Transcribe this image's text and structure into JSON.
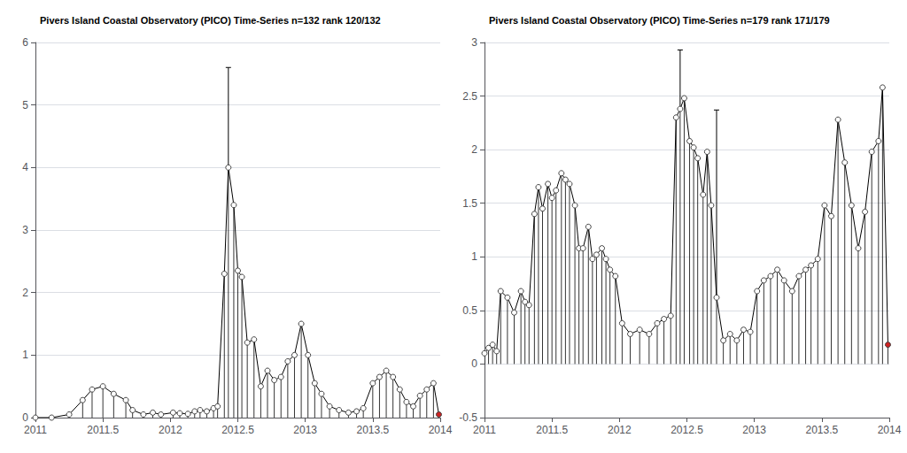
{
  "chart_data": [
    {
      "type": "line",
      "title": "Pivers Island Coastal Observatory (PICO) Time-Series n=132 rank 120/132",
      "x": [
        2011.0,
        2011.12,
        2011.25,
        2011.35,
        2011.42,
        2011.5,
        2011.58,
        2011.67,
        2011.72,
        2011.8,
        2011.87,
        2011.93,
        2012.02,
        2012.07,
        2012.13,
        2012.18,
        2012.22,
        2012.27,
        2012.32,
        2012.35,
        2012.4,
        2012.43,
        2012.47,
        2012.5,
        2012.53,
        2012.57,
        2012.62,
        2012.67,
        2012.72,
        2012.77,
        2012.82,
        2012.87,
        2012.92,
        2012.97,
        2013.02,
        2013.07,
        2013.12,
        2013.18,
        2013.25,
        2013.32,
        2013.38,
        2013.43,
        2013.5,
        2013.55,
        2013.6,
        2013.65,
        2013.7,
        2013.75,
        2013.8,
        2013.85,
        2013.9,
        2013.95,
        2013.99
      ],
      "values": [
        0.0,
        0.0,
        0.05,
        0.28,
        0.45,
        0.5,
        0.38,
        0.28,
        0.12,
        0.05,
        0.08,
        0.05,
        0.08,
        0.07,
        0.06,
        0.1,
        0.12,
        0.1,
        0.15,
        0.18,
        2.3,
        4.0,
        3.4,
        2.35,
        2.25,
        1.2,
        1.25,
        0.5,
        0.75,
        0.6,
        0.65,
        0.9,
        1.0,
        1.5,
        1.0,
        0.55,
        0.38,
        0.18,
        0.12,
        0.08,
        0.1,
        0.15,
        0.55,
        0.65,
        0.75,
        0.65,
        0.45,
        0.25,
        0.18,
        0.35,
        0.45,
        0.55,
        0.05
      ],
      "yerr": [
        0.0,
        0.0,
        0.0,
        0.0,
        0.0,
        0.0,
        0.0,
        0.0,
        0.0,
        0.0,
        0.0,
        0.0,
        0.0,
        0.0,
        0.0,
        0.0,
        0.0,
        0.0,
        0.0,
        0.0,
        0.0,
        1.6,
        0.0,
        0.0,
        0.0,
        0.0,
        0.0,
        0.0,
        0.0,
        0.0,
        0.0,
        0.0,
        0.0,
        0.0,
        0.0,
        0.0,
        0.0,
        0.0,
        0.0,
        0.0,
        0.0,
        0.0,
        0.0,
        0.0,
        0.0,
        0.0,
        0.0,
        0.0,
        0.0,
        0.0,
        0.0,
        0.0,
        0.0
      ],
      "color": "#000000",
      "colors": [
        "#ffffff",
        "#ffffff",
        "#ffffff",
        "#ffffff",
        "#ffffff",
        "#ffffff",
        "#ffffff",
        "#ffffff",
        "#ffffff",
        "#ffffff",
        "#ffffff",
        "#ffffff",
        "#ffffff",
        "#ffffff",
        "#ffffff",
        "#ffffff",
        "#ffffff",
        "#ffffff",
        "#ffffff",
        "#ffffff",
        "#ffffff",
        "#ffffff",
        "#ffffff",
        "#ffffff",
        "#ffffff",
        "#ffffff",
        "#ffffff",
        "#ffffff",
        "#ffffff",
        "#ffffff",
        "#ffffff",
        "#ffffff",
        "#ffffff",
        "#ffffff",
        "#ffffff",
        "#ffffff",
        "#ffffff",
        "#ffffff",
        "#ffffff",
        "#ffffff",
        "#ffffff",
        "#ffffff",
        "#ffffff",
        "#ffffff",
        "#ffffff",
        "#ffffff",
        "#ffffff",
        "#ffffff",
        "#ffffff",
        "#ffffff",
        "#ffffff",
        "#ffffff",
        "#cc2222"
      ],
      "marker": "circle",
      "line_style": "solid",
      "xlim": [
        2011.0,
        2014.0
      ],
      "ylim": [
        0,
        6
      ],
      "xticks": [
        2011,
        2011.5,
        2012,
        2012.5,
        2013,
        2013.5,
        2014
      ],
      "yticks": [
        0,
        1,
        2,
        3,
        4,
        5,
        6
      ],
      "grid": true
    },
    {
      "type": "line",
      "title": "Pivers Island Coastal Observatory (PICO) Time-Series n=179 rank 171/179",
      "x": [
        2011.0,
        2011.03,
        2011.06,
        2011.09,
        2011.12,
        2011.17,
        2011.22,
        2011.27,
        2011.3,
        2011.33,
        2011.37,
        2011.4,
        2011.43,
        2011.47,
        2011.5,
        2011.53,
        2011.57,
        2011.6,
        2011.63,
        2011.67,
        2011.7,
        2011.73,
        2011.77,
        2011.8,
        2011.83,
        2011.87,
        2011.9,
        2011.93,
        2011.97,
        2012.02,
        2012.08,
        2012.15,
        2012.22,
        2012.28,
        2012.33,
        2012.38,
        2012.42,
        2012.45,
        2012.48,
        2012.52,
        2012.55,
        2012.58,
        2012.62,
        2012.65,
        2012.68,
        2012.72,
        2012.77,
        2012.82,
        2012.87,
        2012.92,
        2012.97,
        2013.02,
        2013.07,
        2013.12,
        2013.17,
        2013.22,
        2013.28,
        2013.33,
        2013.38,
        2013.42,
        2013.47,
        2013.52,
        2013.57,
        2013.62,
        2013.67,
        2013.72,
        2013.77,
        2013.82,
        2013.87,
        2013.92,
        2013.95,
        2013.99
      ],
      "values": [
        0.1,
        0.15,
        0.18,
        0.12,
        0.68,
        0.62,
        0.48,
        0.68,
        0.58,
        0.55,
        1.4,
        1.65,
        1.45,
        1.68,
        1.55,
        1.62,
        1.78,
        1.72,
        1.68,
        1.48,
        1.08,
        1.08,
        1.28,
        0.98,
        1.02,
        1.08,
        0.98,
        0.88,
        0.82,
        0.38,
        0.28,
        0.32,
        0.28,
        0.38,
        0.42,
        0.45,
        2.3,
        2.38,
        2.48,
        2.08,
        2.02,
        1.92,
        1.58,
        1.98,
        1.48,
        0.62,
        0.22,
        0.28,
        0.22,
        0.32,
        0.3,
        0.68,
        0.78,
        0.82,
        0.88,
        0.78,
        0.68,
        0.82,
        0.88,
        0.92,
        0.98,
        1.48,
        1.38,
        2.28,
        1.88,
        1.48,
        1.08,
        1.42,
        1.98,
        2.08,
        2.58,
        0.18
      ],
      "yerr": [
        0.0,
        0.0,
        0.0,
        0.0,
        0.0,
        0.0,
        0.0,
        0.0,
        0.0,
        0.0,
        0.0,
        0.0,
        0.0,
        0.0,
        0.0,
        0.0,
        0.0,
        0.0,
        0.0,
        0.0,
        0.0,
        0.0,
        0.0,
        0.0,
        0.0,
        0.0,
        0.0,
        0.0,
        0.0,
        0.0,
        0.0,
        0.0,
        0.0,
        0.0,
        0.0,
        0.0,
        0.0,
        0.55,
        0.0,
        0.0,
        0.0,
        0.0,
        0.0,
        0.0,
        0.0,
        1.75,
        0.0,
        0.0,
        0.0,
        0.0,
        0.0,
        0.0,
        0.0,
        0.0,
        0.0,
        0.0,
        0.0,
        0.0,
        0.0,
        0.0,
        0.0,
        0.0,
        0.0,
        0.0,
        0.0,
        0.0,
        0.0,
        0.0,
        0.0,
        0.0,
        0.0,
        0.0
      ],
      "color": "#000000",
      "colors": [
        "#ffffff",
        "#ffffff",
        "#ffffff",
        "#ffffff",
        "#ffffff",
        "#ffffff",
        "#ffffff",
        "#ffffff",
        "#ffffff",
        "#ffffff",
        "#ffffff",
        "#ffffff",
        "#ffffff",
        "#ffffff",
        "#ffffff",
        "#ffffff",
        "#ffffff",
        "#ffffff",
        "#ffffff",
        "#ffffff",
        "#ffffff",
        "#ffffff",
        "#ffffff",
        "#ffffff",
        "#ffffff",
        "#ffffff",
        "#ffffff",
        "#ffffff",
        "#ffffff",
        "#ffffff",
        "#ffffff",
        "#ffffff",
        "#ffffff",
        "#ffffff",
        "#ffffff",
        "#ffffff",
        "#ffffff",
        "#ffffff",
        "#ffffff",
        "#ffffff",
        "#ffffff",
        "#ffffff",
        "#ffffff",
        "#ffffff",
        "#ffffff",
        "#ffffff",
        "#ffffff",
        "#ffffff",
        "#ffffff",
        "#ffffff",
        "#ffffff",
        "#ffffff",
        "#ffffff",
        "#ffffff",
        "#ffffff",
        "#ffffff",
        "#ffffff",
        "#ffffff",
        "#ffffff",
        "#ffffff",
        "#ffffff",
        "#ffffff",
        "#ffffff",
        "#ffffff",
        "#ffffff",
        "#ffffff",
        "#ffffff",
        "#ffffff",
        "#ffffff",
        "#ffffff",
        "#ffffff",
        "#cc2222"
      ],
      "marker": "circle",
      "line_style": "solid",
      "xlim": [
        2011.0,
        2014.0
      ],
      "ylim": [
        -0.5,
        3.0
      ],
      "xticks": [
        2011,
        2011.5,
        2012,
        2012.5,
        2013,
        2013.5,
        2014
      ],
      "yticks": [
        -0.5,
        0,
        0.5,
        1,
        1.5,
        2,
        2.5,
        3
      ],
      "grid": true
    }
  ]
}
